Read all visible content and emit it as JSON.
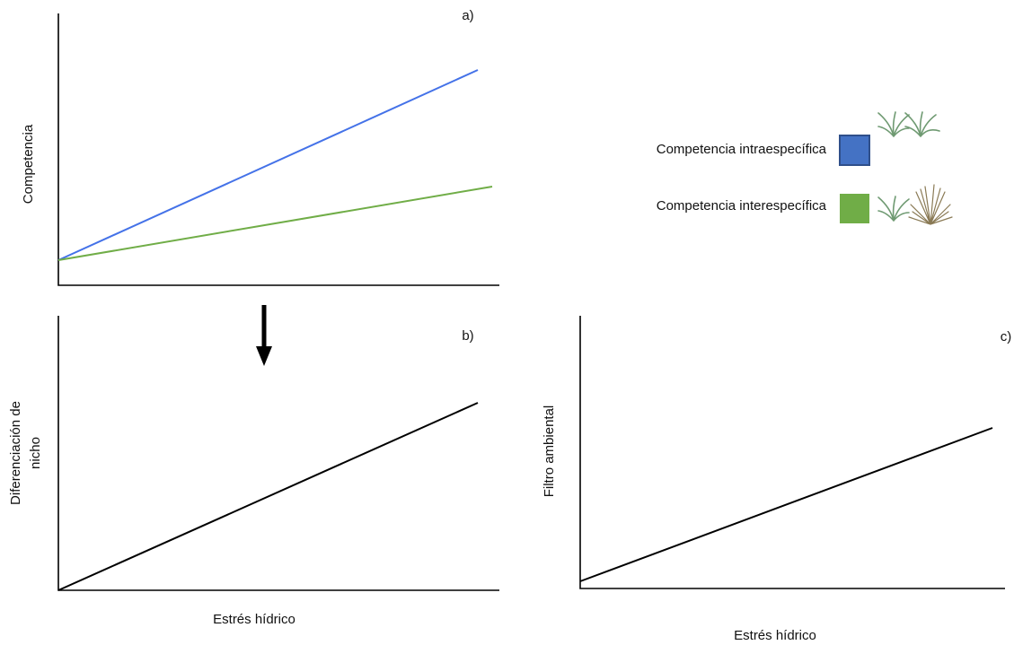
{
  "panel_a": {
    "label": "a)",
    "y_axis_title": "Competencia",
    "legend": [
      {
        "text": "Competencia intraespecífica"
      },
      {
        "text": "Competencia interespecífica"
      }
    ]
  },
  "panel_b": {
    "label": "b)",
    "y_axis_title": [
      "Diferenciación de",
      "nicho"
    ],
    "x_axis_title": "Estrés hídrico"
  },
  "panel_c": {
    "label": "c)",
    "y_axis_title": "Filtro ambiental",
    "x_axis_title": "Estrés hídrico"
  }
}
